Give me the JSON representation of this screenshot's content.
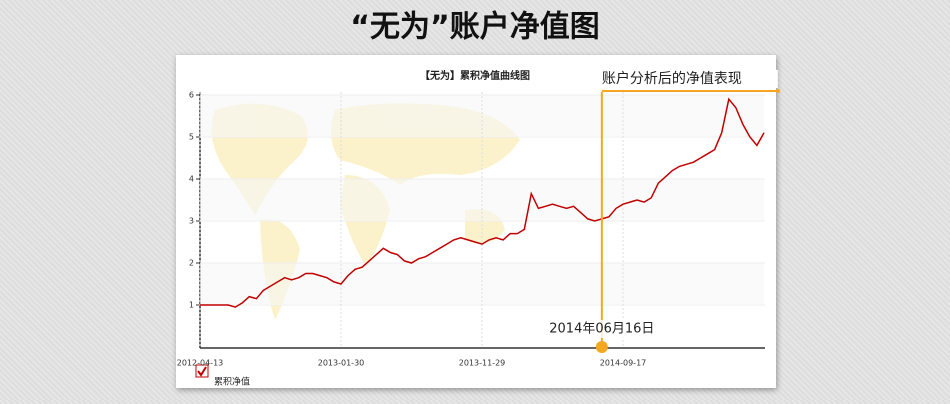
{
  "page_title": "“无为”账户净值图",
  "chart_data": {
    "type": "line",
    "title": "【无为】累积净值曲线图",
    "categories": [
      "2012-04-13",
      null,
      null,
      null,
      null,
      null,
      null,
      null,
      null,
      null,
      null,
      null,
      null,
      null,
      null,
      null,
      null,
      null,
      null,
      null,
      "2013-01-30",
      null,
      null,
      null,
      null,
      null,
      null,
      null,
      null,
      null,
      null,
      null,
      null,
      null,
      null,
      null,
      null,
      null,
      null,
      null,
      "2013-11-29",
      null,
      null,
      null,
      null,
      null,
      null,
      null,
      null,
      null,
      null,
      null,
      null,
      null,
      null,
      null,
      null,
      null,
      null,
      null,
      "2014-09-17",
      null,
      null,
      null,
      null,
      null,
      null,
      null,
      null,
      null,
      null,
      null,
      null,
      null,
      null,
      null,
      null,
      null,
      null,
      null,
      null
    ],
    "series": [
      {
        "name": "累积净值",
        "color": "#c00000",
        "values": [
          1.0,
          1.0,
          1.0,
          1.0,
          1.0,
          0.95,
          1.05,
          1.2,
          1.15,
          1.35,
          1.45,
          1.55,
          1.65,
          1.6,
          1.65,
          1.75,
          1.75,
          1.7,
          1.65,
          1.55,
          1.5,
          1.7,
          1.85,
          1.9,
          2.05,
          2.2,
          2.35,
          2.25,
          2.2,
          2.05,
          2.0,
          2.1,
          2.15,
          2.25,
          2.35,
          2.45,
          2.55,
          2.6,
          2.55,
          2.5,
          2.45,
          2.55,
          2.6,
          2.55,
          2.7,
          2.7,
          2.8,
          3.65,
          3.3,
          3.35,
          3.4,
          3.35,
          3.3,
          3.35,
          3.2,
          3.05,
          3.0,
          3.05,
          3.1,
          3.3,
          3.4,
          3.45,
          3.5,
          3.45,
          3.55,
          3.9,
          4.05,
          4.2,
          4.3,
          4.35,
          4.4,
          4.5,
          4.6,
          4.7,
          5.1,
          5.9,
          5.7,
          5.3,
          5.0,
          4.8,
          5.1
        ]
      }
    ],
    "ylim": [
      0,
      6
    ],
    "yticks": [
      1,
      2,
      3,
      4,
      5,
      6
    ],
    "grid": true,
    "annotation": {
      "date_label": "2014年06月16日",
      "note": "账户分析后的净值表现",
      "category": 57,
      "color": "#f5a623"
    }
  }
}
